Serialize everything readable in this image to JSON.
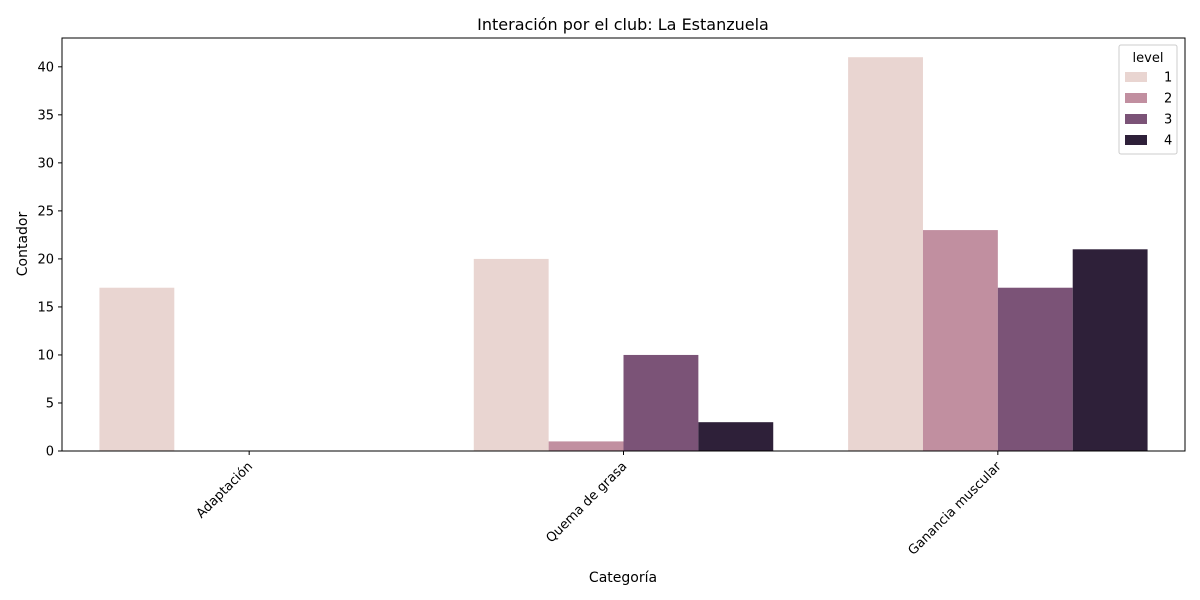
{
  "chart_data": {
    "type": "bar",
    "title": "Interación por el club: La Estanzuela",
    "xlabel": "Categoría",
    "ylabel": "Contador",
    "categories": [
      "Adaptación",
      "Quema de grasa",
      "Ganancia muscular"
    ],
    "series": [
      {
        "name": "1",
        "values": [
          17,
          20,
          41
        ],
        "color": "#e9d5d1"
      },
      {
        "name": "2",
        "values": [
          0,
          1,
          23
        ],
        "color": "#c18fa0"
      },
      {
        "name": "3",
        "values": [
          0,
          10,
          17
        ],
        "color": "#7b5377"
      },
      {
        "name": "4",
        "values": [
          0,
          3,
          21
        ],
        "color": "#2e2039"
      }
    ],
    "ylim": [
      0,
      43
    ],
    "yticks": [
      0,
      5,
      10,
      15,
      20,
      25,
      30,
      35,
      40
    ],
    "legend": {
      "title": "level",
      "placement": "top-right"
    },
    "grid": false
  }
}
